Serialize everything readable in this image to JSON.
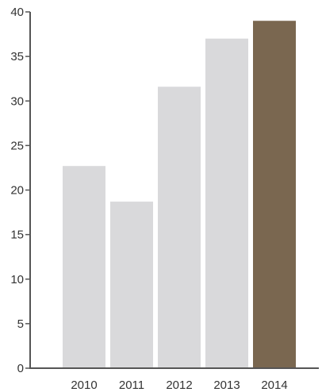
{
  "chart_data": {
    "type": "bar",
    "categories": [
      "2010",
      "2011",
      "2012",
      "2013",
      "2014"
    ],
    "values": [
      22.7,
      18.7,
      31.6,
      37.0,
      39.0
    ],
    "ylim": [
      0,
      40
    ],
    "yticks": [
      0,
      5,
      10,
      15,
      20,
      25,
      30,
      35,
      40
    ],
    "grid": false,
    "colors": {
      "bar": "#d9d9db",
      "highlight": "#7a6750",
      "axis": "#555555"
    },
    "highlight_category": "2014"
  }
}
